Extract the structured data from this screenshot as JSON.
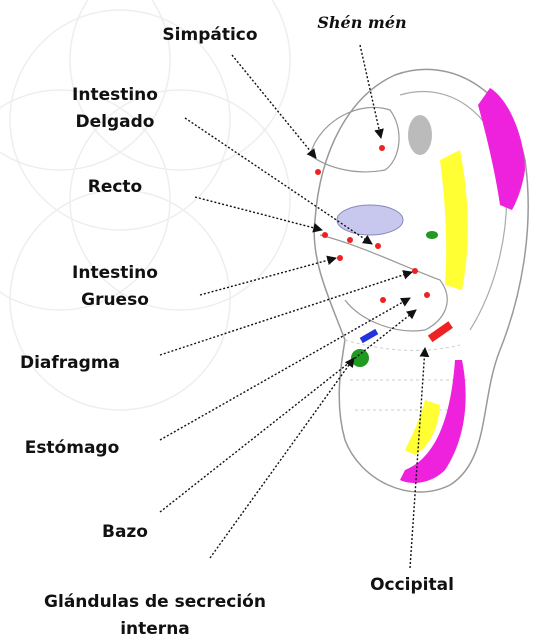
{
  "labels": [
    {
      "lines": [
        "Simpático"
      ]
    },
    {
      "lines": [
        "Shén mén"
      ]
    },
    {
      "lines": [
        "Intestino",
        "Delgado"
      ]
    },
    {
      "lines": [
        "Recto"
      ]
    },
    {
      "lines": [
        "Intestino",
        "Grueso"
      ]
    },
    {
      "lines": [
        "Diafragma"
      ]
    },
    {
      "lines": [
        "Estómago"
      ]
    },
    {
      "lines": [
        "Bazo"
      ]
    },
    {
      "lines": [
        "Glándulas de secreción",
        "interna"
      ]
    },
    {
      "lines": [
        "Occipital"
      ]
    }
  ]
}
